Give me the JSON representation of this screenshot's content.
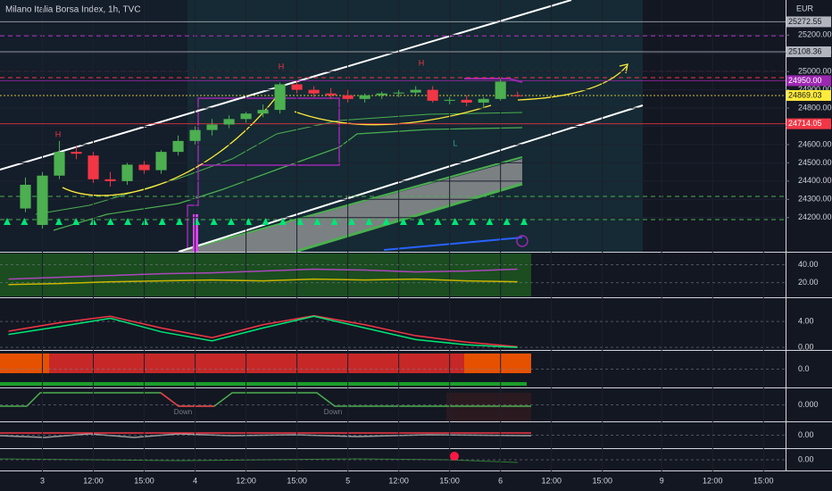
{
  "chart_data": {
    "type": "candlestick",
    "title": "Milano Italia Borsa Index, 1h, TVC",
    "currency": "EUR",
    "up_color": "#4caf50",
    "down_color": "#f23645",
    "x": [
      -1,
      0,
      1,
      2,
      3,
      4,
      5,
      6,
      7,
      8,
      9,
      10,
      11,
      12,
      13,
      14,
      15,
      16,
      17,
      18,
      19,
      20,
      21,
      22,
      23,
      24,
      25,
      26,
      27,
      28
    ],
    "open": [
      24250,
      24160,
      24430,
      24560,
      24540,
      24410,
      24400,
      24490,
      24460,
      24560,
      24620,
      24680,
      24710,
      24740,
      24770,
      24790,
      24930,
      24900,
      24880,
      24870,
      24850,
      24870,
      24880,
      24885,
      24900,
      24840,
      24845,
      24830,
      24850,
      24870
    ],
    "high": [
      24420,
      24450,
      24620,
      24590,
      24560,
      24450,
      24500,
      24510,
      24570,
      24650,
      24700,
      24740,
      24760,
      24780,
      24820,
      24940,
      24950,
      24920,
      24910,
      24900,
      24880,
      24890,
      24900,
      24920,
      24920,
      24860,
      24870,
      24860,
      24960,
      24890
    ],
    "low": [
      24230,
      24140,
      24410,
      24520,
      24390,
      24370,
      24380,
      24440,
      24440,
      24540,
      24600,
      24650,
      24690,
      24720,
      24750,
      24770,
      24880,
      24860,
      24850,
      24830,
      24830,
      24850,
      24860,
      24870,
      24830,
      24820,
      24810,
      24800,
      24840,
      24860
    ],
    "close": [
      24380,
      24430,
      24560,
      24550,
      24410,
      24400,
      24490,
      24460,
      24560,
      24620,
      24680,
      24710,
      24740,
      24770,
      24790,
      24930,
      24900,
      24880,
      24870,
      24850,
      24870,
      24880,
      24885,
      24900,
      24840,
      24845,
      24830,
      24850,
      24945,
      24869
    ],
    "xlim": [
      -2.5,
      43.8
    ],
    "xticks": [
      {
        "value": 0,
        "label": "3"
      },
      {
        "value": 3,
        "label": "12:00"
      },
      {
        "value": 6,
        "label": "15:00"
      },
      {
        "value": 9,
        "label": "4"
      },
      {
        "value": 12,
        "label": "12:00"
      },
      {
        "value": 15,
        "label": "15:00"
      },
      {
        "value": 18,
        "label": "5"
      },
      {
        "value": 21,
        "label": "12:00"
      },
      {
        "value": 24,
        "label": "15:00"
      },
      {
        "value": 27,
        "label": "6"
      },
      {
        "value": 30,
        "label": "12:00"
      },
      {
        "value": 33,
        "label": "15:00"
      },
      {
        "value": 36.5,
        "label": "9"
      },
      {
        "value": 39.5,
        "label": "12:00"
      },
      {
        "value": 42.5,
        "label": "15:00"
      }
    ],
    "ylim": [
      24013,
      25392
    ],
    "yticks": [
      {
        "value": 24200,
        "label": "24200.00"
      },
      {
        "value": 24300,
        "label": "24300.00"
      },
      {
        "value": 24400,
        "label": "24400.00"
      },
      {
        "value": 24500,
        "label": "24500.00"
      },
      {
        "value": 24600,
        "label": "24600.00"
      },
      {
        "value": 24700,
        "label": "24700.00"
      },
      {
        "value": 24800,
        "label": "24800.00"
      },
      {
        "value": 24900,
        "label": "24900.00"
      },
      {
        "value": 25000,
        "label": "25000.00"
      },
      {
        "value": 25100,
        "label": "25100.00"
      },
      {
        "value": 25200,
        "label": "25200.00"
      }
    ],
    "price_lines": [
      {
        "value": 25272.55,
        "label": "25272.55",
        "color": "#b2b5be"
      },
      {
        "value": 25108.36,
        "label": "25108.36",
        "color": "#b2b5be"
      },
      {
        "value": 24950.0,
        "label": "24950.00",
        "color": "#9c27b0"
      },
      {
        "value": 24869.03,
        "label": "24869.03",
        "color": "#ffeb3b"
      },
      {
        "value": 24714.05,
        "label": "24714.05",
        "color": "#f23645"
      }
    ],
    "annotations": [
      {
        "text": "H",
        "color": "#f23645"
      },
      {
        "text": "H",
        "color": "#f23645"
      },
      {
        "text": "H",
        "color": "#f23645"
      },
      {
        "text": "L",
        "color": "#26a69a"
      },
      {
        "text": "Down",
        "color": "#787b86"
      },
      {
        "text": "Down",
        "color": "#787b86"
      }
    ],
    "indicators": [
      {
        "ylim": [
          4.8,
          52.4
        ],
        "yticks": [
          {
            "value": 40,
            "label": "40.00"
          },
          {
            "value": 20,
            "label": "20.00"
          }
        ],
        "x": [
          -2,
          1,
          4,
          7,
          10,
          13,
          16,
          19,
          22,
          25,
          28
        ],
        "series": [
          {
            "color": "#ab47bc",
            "values": [
              24,
              26,
              28,
              30,
              31,
              33,
              35,
              34,
              32,
              33,
              35
            ]
          },
          {
            "color": "#c8b400",
            "values": [
              18,
              19,
              21,
              22,
              23,
              22,
              24,
              23,
              24,
              22,
              21
            ]
          }
        ]
      },
      {
        "ylim": [
          -0.4,
          7.6
        ],
        "yticks": [
          {
            "value": 4,
            "label": "4.00"
          },
          {
            "value": 0,
            "label": "0.00"
          }
        ],
        "x": [
          -2,
          1,
          4,
          7,
          10,
          13,
          16,
          19,
          22,
          25,
          28
        ],
        "series": [
          {
            "color": "#f23645",
            "values": [
              2.5,
              3.8,
              4.8,
              3.0,
              1.5,
              3.5,
              4.9,
              3.5,
              1.8,
              0.8,
              0.1
            ]
          },
          {
            "color": "#00e676",
            "values": [
              2.0,
              3.2,
              4.5,
              2.4,
              1.0,
              3.0,
              4.8,
              3.0,
              1.2,
              0.4,
              0.0
            ]
          }
        ]
      },
      {
        "ylim": [
          -1,
          1
        ],
        "yticks": [
          {
            "value": 0,
            "label": "0.0"
          }
        ]
      },
      {
        "ylim": [
          -1,
          1
        ],
        "yticks": [
          {
            "value": 0,
            "label": "0.000"
          }
        ]
      },
      {
        "ylim": [
          -1,
          1
        ],
        "yticks": [
          {
            "value": 0,
            "label": "0.00"
          }
        ]
      },
      {
        "ylim": [
          -1,
          1
        ],
        "yticks": [
          {
            "value": 0,
            "label": "0.00"
          }
        ]
      }
    ]
  }
}
